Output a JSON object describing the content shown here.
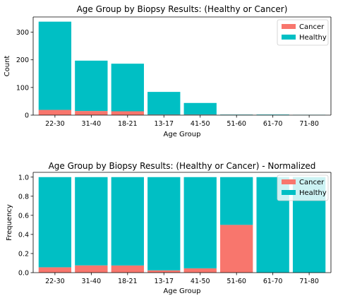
{
  "colors": {
    "cancer": "#f8766d",
    "healthy": "#00bfc4",
    "axis": "#000000"
  },
  "chart_data": [
    {
      "type": "bar",
      "stacked": true,
      "title": "Age Group by Biopsy Results: (Healthy or Cancer)",
      "xlabel": "Age Group",
      "ylabel": "Count",
      "categories": [
        "22-30",
        "31-40",
        "18-21",
        "13-17",
        "41-50",
        "51-60",
        "61-70",
        "71-80"
      ],
      "series": [
        {
          "name": "Cancer",
          "color": "#f8766d",
          "values": [
            19,
            15,
            14,
            2,
            2,
            1,
            0,
            0
          ]
        },
        {
          "name": "Healthy",
          "color": "#00bfc4",
          "values": [
            319,
            182,
            172,
            82,
            42,
            1,
            2,
            1
          ]
        }
      ],
      "ylim": [
        0,
        355
      ],
      "yticks": [
        0,
        100,
        200,
        300
      ],
      "ytick_labels": [
        "0",
        "100",
        "200",
        "300"
      ],
      "legend": "upper right",
      "grid": false
    },
    {
      "type": "bar",
      "stacked": true,
      "title": "Age Group by Biopsy Results: (Healthy or Cancer) - Normalized",
      "xlabel": "Age Group",
      "ylabel": "Frequency",
      "categories": [
        "22-30",
        "31-40",
        "18-21",
        "13-17",
        "41-50",
        "51-60",
        "61-70",
        "71-80"
      ],
      "series": [
        {
          "name": "Cancer",
          "color": "#f8766d",
          "values": [
            0.056,
            0.076,
            0.075,
            0.024,
            0.045,
            0.5,
            0.0,
            0.0
          ]
        },
        {
          "name": "Healthy",
          "color": "#00bfc4",
          "values": [
            0.944,
            0.924,
            0.925,
            0.976,
            0.955,
            0.5,
            1.0,
            1.0
          ]
        }
      ],
      "ylim": [
        0,
        1.05
      ],
      "yticks": [
        0,
        0.2,
        0.4,
        0.6,
        0.8,
        1.0
      ],
      "ytick_labels": [
        "0.0",
        "0.2",
        "0.4",
        "0.6",
        "0.8",
        "1.0"
      ],
      "legend": "upper right",
      "grid": false
    }
  ]
}
